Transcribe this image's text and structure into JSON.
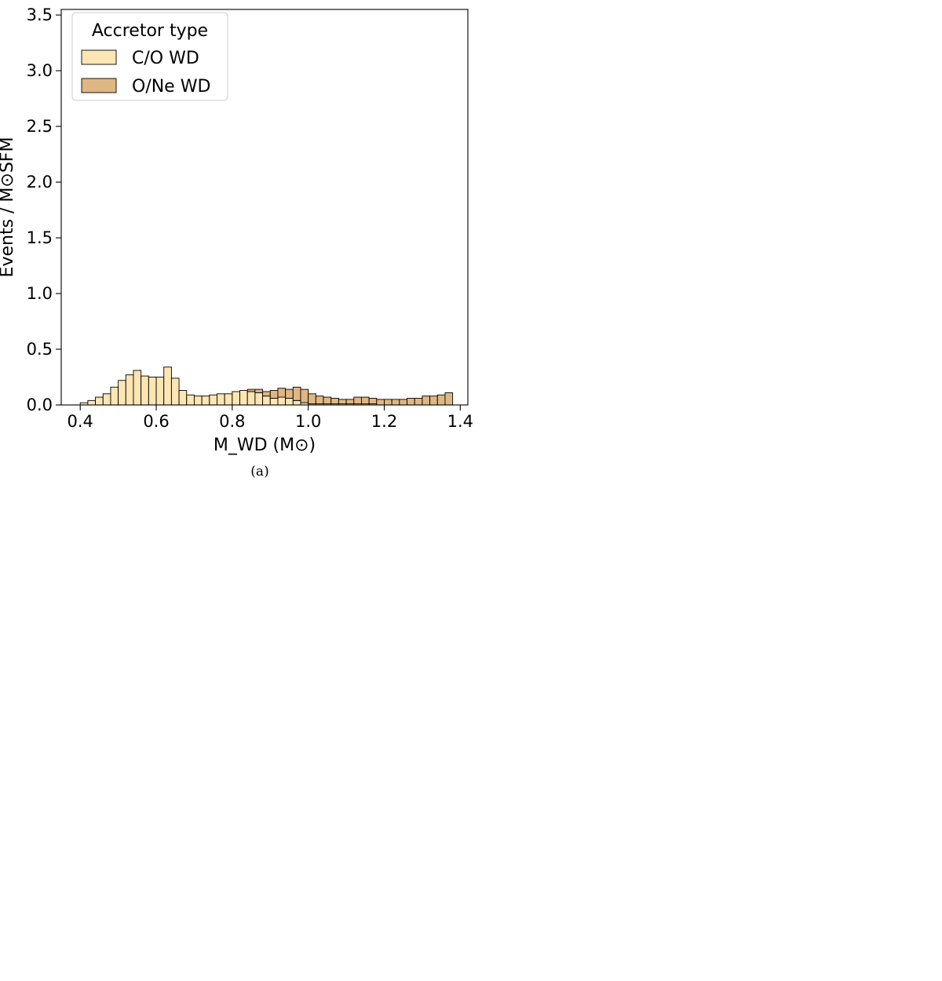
{
  "chart_data": [
    {
      "panel": "a",
      "type": "bar",
      "stacked": true,
      "caption": "(a)",
      "xlabel": "M_WD (M⊙)",
      "ylabel": "Events / M⊙SFM",
      "xlim": [
        0.35,
        1.42
      ],
      "ylim": [
        0,
        3.55
      ],
      "xticks": [
        0.4,
        0.6,
        0.8,
        1.0,
        1.2,
        1.4
      ],
      "yticks": [
        0.0,
        0.5,
        1.0,
        1.5,
        2.0,
        2.5,
        3.0,
        3.5
      ],
      "offset_text": "",
      "legend": {
        "title": "Accretor type",
        "loc": "upper-left"
      },
      "bin_edges": [
        0.4,
        0.42,
        0.44,
        0.46,
        0.48,
        0.5,
        0.52,
        0.54,
        0.56,
        0.58,
        0.6,
        0.62,
        0.64,
        0.66,
        0.68,
        0.7,
        0.72,
        0.74,
        0.76,
        0.78,
        0.8,
        0.82,
        0.84,
        0.86,
        0.88,
        0.9,
        0.92,
        0.94,
        0.96,
        0.98,
        1.0,
        1.02,
        1.04,
        1.06,
        1.08,
        1.1,
        1.12,
        1.14,
        1.16,
        1.18,
        1.2,
        1.22,
        1.24,
        1.26,
        1.28,
        1.3,
        1.32,
        1.34,
        1.36,
        1.38
      ],
      "series": [
        {
          "name": "C/O WD",
          "color": "#fde5b4",
          "values": [
            0.02,
            0.04,
            0.07,
            0.1,
            0.16,
            0.22,
            0.27,
            0.31,
            0.26,
            0.25,
            0.25,
            0.34,
            0.24,
            0.13,
            0.09,
            0.08,
            0.08,
            0.09,
            0.1,
            0.1,
            0.12,
            0.13,
            0.12,
            0.11,
            0.08,
            0.06,
            0.07,
            0.06,
            0.04,
            0.02,
            0.01,
            0.01,
            0.01,
            0.01,
            0.01,
            0.01,
            0.01,
            0.01,
            0.01,
            0.0,
            0.0,
            0.0,
            0.0,
            0.0,
            0.0,
            0.0,
            0.0,
            0.0,
            0.0
          ]
        },
        {
          "name": "O/Ne WD",
          "color": "#dfb784",
          "values": [
            0,
            0,
            0,
            0,
            0,
            0,
            0,
            0,
            0,
            0,
            0,
            0,
            0,
            0,
            0,
            0,
            0,
            0,
            0,
            0,
            0,
            0,
            0.02,
            0.03,
            0.04,
            0.07,
            0.08,
            0.08,
            0.12,
            0.12,
            0.09,
            0.07,
            0.06,
            0.05,
            0.04,
            0.04,
            0.06,
            0.06,
            0.05,
            0.05,
            0.05,
            0.05,
            0.05,
            0.06,
            0.06,
            0.08,
            0.08,
            0.09,
            0.11
          ]
        }
      ]
    }
  ]
}
